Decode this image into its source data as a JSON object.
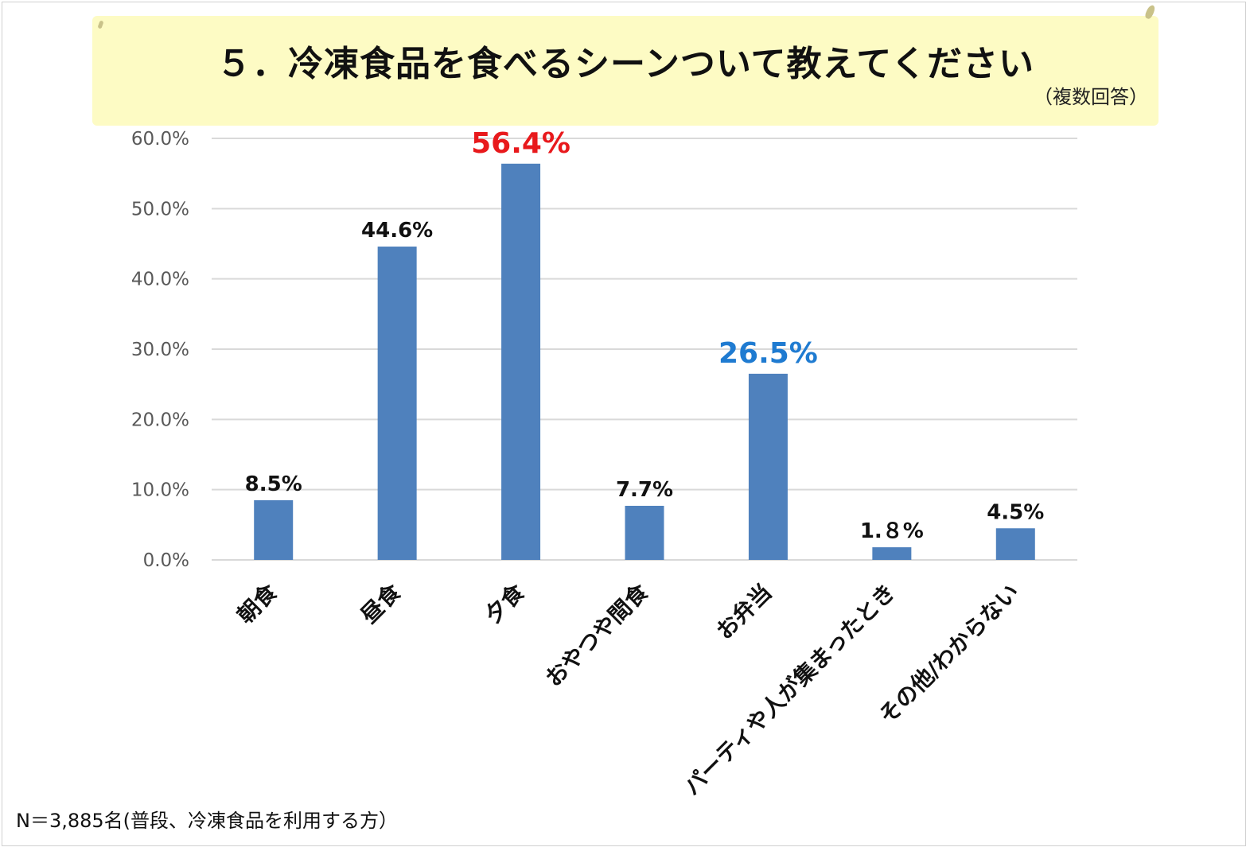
{
  "title": "５．冷凍食品を食べるシーンついて教えてください",
  "subtitle": "（複数回答）",
  "footnote": "N＝3,885名(普段、冷凍食品を利用する方）",
  "colors": {
    "bar": "#4f81bd",
    "grid": "#d9d9d9",
    "tick_label": "#595959",
    "data_label": "#111111",
    "highlight_red": "#e8191c",
    "highlight_blue": "#1f7bd1",
    "banner": "#fdfbc4"
  },
  "chart_data": {
    "type": "bar",
    "categories": [
      "朝食",
      "昼食",
      "夕食",
      "おやつや間食",
      "お弁当",
      "パーティや人が集まったとき",
      "その他/わからない"
    ],
    "values": [
      8.5,
      44.6,
      56.4,
      7.7,
      26.5,
      1.8,
      4.5
    ],
    "value_labels": [
      "8.5%",
      "44.6%",
      "56.4%",
      "7.7%",
      "26.5%",
      "1.８%",
      "4.5%"
    ],
    "label_colors": [
      "#111111",
      "#111111",
      "#e8191c",
      "#111111",
      "#1f7bd1",
      "#111111",
      "#111111"
    ],
    "y_ticks": [
      "0.0%",
      "10.0%",
      "20.0%",
      "30.0%",
      "40.0%",
      "50.0%",
      "60.0%"
    ],
    "ylim": [
      0,
      60
    ],
    "grid": true,
    "title": "５．冷凍食品を食べるシーンついて教えてください",
    "xlabel": "",
    "ylabel": ""
  }
}
